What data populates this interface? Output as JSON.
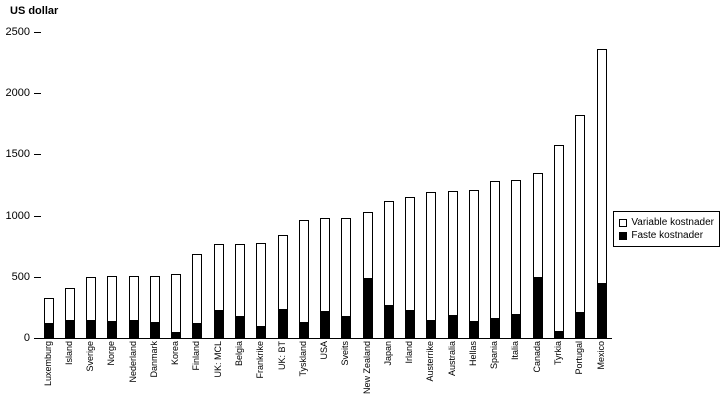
{
  "chart_data": {
    "type": "bar",
    "stacked": true,
    "title": "",
    "xlabel": "",
    "ylabel": "US dollar",
    "ylim": [
      0,
      2500
    ],
    "yticks": [
      0,
      500,
      1000,
      1500,
      2000,
      2500
    ],
    "grid": false,
    "legend_position": "right",
    "categories": [
      "Luxemburg",
      "Island",
      "Sverige",
      "Norge",
      "Nederland",
      "Danmark",
      "Korea",
      "Finland",
      "UK: MCL",
      "Belgia",
      "Frankrike",
      "UK: BT",
      "Tyskland",
      "USA",
      "Sveits",
      "New Zealand",
      "Japan",
      "Irland",
      "Austerrike",
      "Australia",
      "Hellas",
      "Spania",
      "Italia",
      "Canada",
      "Tyrkia",
      "Portugal",
      "Mexico"
    ],
    "series": [
      {
        "name": "Variable kostnader",
        "color": "#ffffff",
        "values": [
          210,
          260,
          350,
          370,
          360,
          380,
          470,
          570,
          540,
          590,
          680,
          600,
          830,
          760,
          800,
          540,
          850,
          920,
          1040,
          1010,
          1070,
          1120,
          1090,
          850,
          1520,
          1610,
          1910
        ]
      },
      {
        "name": "Faste kostnader",
        "color": "#000000",
        "values": [
          120,
          150,
          150,
          140,
          150,
          130,
          50,
          120,
          230,
          180,
          100,
          240,
          130,
          220,
          180,
          490,
          270,
          230,
          150,
          190,
          140,
          160,
          200,
          500,
          60,
          210,
          450
        ]
      }
    ]
  }
}
